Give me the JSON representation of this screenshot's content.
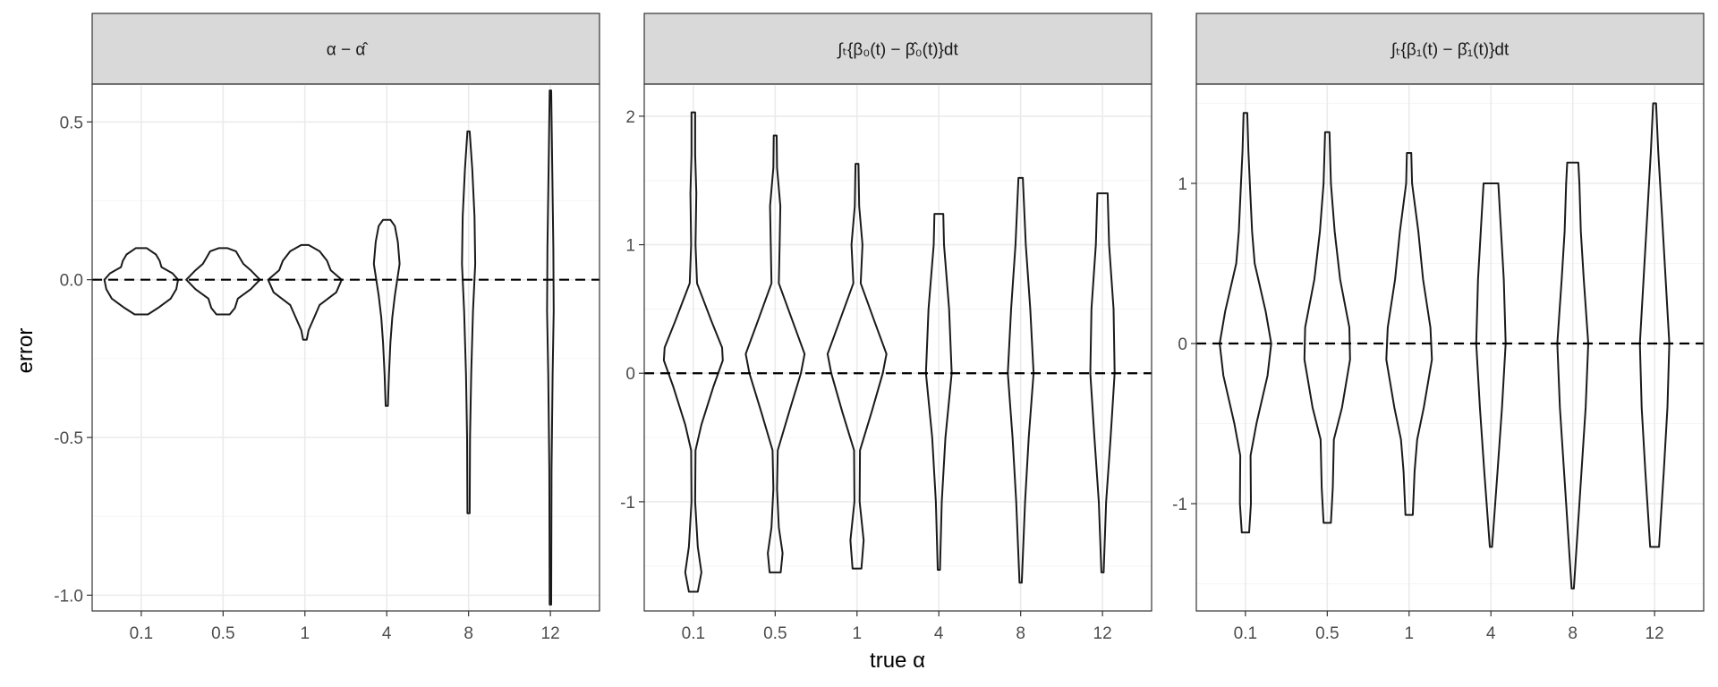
{
  "chart_data": {
    "type": "violin",
    "xlabel": "true α",
    "ylabel": "error",
    "categories": [
      "0.1",
      "0.5",
      "1",
      "4",
      "8",
      "12"
    ],
    "reference_line": {
      "y": 0,
      "style": "dashed"
    },
    "grid": true,
    "facets": [
      {
        "strip": "α − α̂",
        "ylim": [
          -1.05,
          0.62
        ],
        "yticks": [
          -1.0,
          -0.5,
          0.0,
          0.5
        ],
        "ytick_labels": [
          "-1.0",
          "-0.5",
          "0.0",
          "0.5"
        ],
        "violins": [
          {
            "category": "0.1",
            "min": -0.11,
            "max": 0.1,
            "profile": [
              [
                -0.11,
                0.18
              ],
              [
                -0.09,
                0.45
              ],
              [
                -0.06,
                0.8
              ],
              [
                -0.03,
                0.95
              ],
              [
                0.0,
                1.0
              ],
              [
                0.02,
                0.85
              ],
              [
                0.04,
                0.55
              ],
              [
                0.06,
                0.5
              ],
              [
                0.08,
                0.4
              ],
              [
                0.1,
                0.15
              ]
            ]
          },
          {
            "category": "0.5",
            "min": -0.11,
            "max": 0.1,
            "profile": [
              [
                -0.11,
                0.18
              ],
              [
                -0.09,
                0.32
              ],
              [
                -0.06,
                0.4
              ],
              [
                -0.03,
                0.75
              ],
              [
                0.0,
                1.0
              ],
              [
                0.03,
                0.75
              ],
              [
                0.05,
                0.55
              ],
              [
                0.07,
                0.45
              ],
              [
                0.09,
                0.35
              ],
              [
                0.1,
                0.12
              ]
            ]
          },
          {
            "category": "1",
            "min": -0.19,
            "max": 0.11,
            "profile": [
              [
                -0.19,
                0.05
              ],
              [
                -0.16,
                0.1
              ],
              [
                -0.12,
                0.25
              ],
              [
                -0.08,
                0.4
              ],
              [
                -0.04,
                0.85
              ],
              [
                0.0,
                1.0
              ],
              [
                0.03,
                0.7
              ],
              [
                0.06,
                0.6
              ],
              [
                0.09,
                0.4
              ],
              [
                0.11,
                0.1
              ]
            ]
          },
          {
            "category": "4",
            "min": -0.4,
            "max": 0.19,
            "profile": [
              [
                -0.4,
                0.03
              ],
              [
                -0.3,
                0.06
              ],
              [
                -0.2,
                0.1
              ],
              [
                -0.12,
                0.15
              ],
              [
                -0.05,
                0.22
              ],
              [
                0.05,
                0.35
              ],
              [
                0.12,
                0.3
              ],
              [
                0.17,
                0.22
              ],
              [
                0.19,
                0.1
              ]
            ]
          },
          {
            "category": "8",
            "min": -0.74,
            "max": 0.47,
            "profile": [
              [
                -0.74,
                0.03
              ],
              [
                -0.5,
                0.04
              ],
              [
                -0.3,
                0.07
              ],
              [
                -0.1,
                0.12
              ],
              [
                0.05,
                0.18
              ],
              [
                0.2,
                0.16
              ],
              [
                0.35,
                0.1
              ],
              [
                0.47,
                0.03
              ]
            ]
          },
          {
            "category": "12",
            "min": -1.03,
            "max": 0.6,
            "profile": [
              [
                -1.03,
                0.02
              ],
              [
                -0.6,
                0.03
              ],
              [
                -0.3,
                0.06
              ],
              [
                -0.1,
                0.09
              ],
              [
                0.1,
                0.08
              ],
              [
                0.35,
                0.05
              ],
              [
                0.6,
                0.02
              ]
            ]
          }
        ]
      },
      {
        "strip": "∫ₜ{β₀(t) − β̂₀(t)}dt",
        "ylim": [
          -1.85,
          2.25
        ],
        "yticks": [
          -1,
          0,
          1,
          2
        ],
        "ytick_labels": [
          "-1",
          "0",
          "1",
          "2"
        ],
        "violins": [
          {
            "category": "0.1",
            "min": -1.7,
            "max": 2.03,
            "profile": [
              [
                -1.7,
                0.12
              ],
              [
                -1.55,
                0.22
              ],
              [
                -1.35,
                0.12
              ],
              [
                -1.0,
                0.05
              ],
              [
                -0.6,
                0.06
              ],
              [
                -0.4,
                0.22
              ],
              [
                -0.1,
                0.55
              ],
              [
                0.1,
                0.8
              ],
              [
                0.2,
                0.78
              ],
              [
                0.4,
                0.5
              ],
              [
                0.7,
                0.1
              ],
              [
                1.0,
                0.06
              ],
              [
                1.4,
                0.08
              ],
              [
                1.7,
                0.05
              ],
              [
                2.03,
                0.05
              ]
            ]
          },
          {
            "category": "0.5",
            "min": -1.55,
            "max": 1.85,
            "profile": [
              [
                -1.55,
                0.15
              ],
              [
                -1.4,
                0.2
              ],
              [
                -1.2,
                0.1
              ],
              [
                -0.9,
                0.05
              ],
              [
                -0.6,
                0.07
              ],
              [
                -0.3,
                0.38
              ],
              [
                0.0,
                0.7
              ],
              [
                0.15,
                0.8
              ],
              [
                0.4,
                0.48
              ],
              [
                0.7,
                0.1
              ],
              [
                1.0,
                0.12
              ],
              [
                1.3,
                0.14
              ],
              [
                1.6,
                0.05
              ],
              [
                1.85,
                0.04
              ]
            ]
          },
          {
            "category": "1",
            "min": -1.52,
            "max": 1.63,
            "profile": [
              [
                -1.52,
                0.12
              ],
              [
                -1.3,
                0.18
              ],
              [
                -1.0,
                0.07
              ],
              [
                -0.6,
                0.08
              ],
              [
                -0.3,
                0.4
              ],
              [
                0.0,
                0.7
              ],
              [
                0.15,
                0.8
              ],
              [
                0.4,
                0.48
              ],
              [
                0.7,
                0.1
              ],
              [
                1.0,
                0.15
              ],
              [
                1.3,
                0.06
              ],
              [
                1.63,
                0.04
              ]
            ]
          },
          {
            "category": "4",
            "min": -1.53,
            "max": 1.24,
            "profile": [
              [
                -1.53,
                0.03
              ],
              [
                -1.0,
                0.08
              ],
              [
                -0.5,
                0.18
              ],
              [
                0.0,
                0.35
              ],
              [
                0.5,
                0.28
              ],
              [
                1.0,
                0.14
              ],
              [
                1.24,
                0.12
              ]
            ]
          },
          {
            "category": "8",
            "min": -1.63,
            "max": 1.52,
            "profile": [
              [
                -1.63,
                0.03
              ],
              [
                -1.0,
                0.12
              ],
              [
                -0.5,
                0.22
              ],
              [
                0.0,
                0.35
              ],
              [
                0.5,
                0.26
              ],
              [
                1.0,
                0.14
              ],
              [
                1.52,
                0.06
              ]
            ]
          },
          {
            "category": "12",
            "min": -1.55,
            "max": 1.4,
            "profile": [
              [
                -1.55,
                0.03
              ],
              [
                -1.0,
                0.1
              ],
              [
                -0.5,
                0.22
              ],
              [
                0.0,
                0.33
              ],
              [
                0.5,
                0.3
              ],
              [
                1.0,
                0.18
              ],
              [
                1.4,
                0.14
              ]
            ]
          }
        ]
      },
      {
        "strip": "∫ₜ{β₁(t) − β̂₁(t)}dt",
        "ylim": [
          -1.67,
          1.62
        ],
        "yticks": [
          -1,
          0,
          1
        ],
        "ytick_labels": [
          "-1",
          "0",
          "1"
        ],
        "violins": [
          {
            "category": "0.1",
            "min": -1.18,
            "max": 1.44,
            "profile": [
              [
                -1.18,
                0.1
              ],
              [
                -1.0,
                0.15
              ],
              [
                -0.7,
                0.14
              ],
              [
                -0.5,
                0.3
              ],
              [
                -0.2,
                0.6
              ],
              [
                0.0,
                0.7
              ],
              [
                0.2,
                0.55
              ],
              [
                0.5,
                0.25
              ],
              [
                0.7,
                0.18
              ],
              [
                1.0,
                0.12
              ],
              [
                1.2,
                0.08
              ],
              [
                1.44,
                0.05
              ]
            ]
          },
          {
            "category": "0.5",
            "min": -1.12,
            "max": 1.32,
            "profile": [
              [
                -1.12,
                0.1
              ],
              [
                -0.9,
                0.15
              ],
              [
                -0.6,
                0.18
              ],
              [
                -0.4,
                0.4
              ],
              [
                -0.1,
                0.62
              ],
              [
                0.1,
                0.6
              ],
              [
                0.4,
                0.35
              ],
              [
                0.7,
                0.2
              ],
              [
                1.0,
                0.1
              ],
              [
                1.32,
                0.06
              ]
            ]
          },
          {
            "category": "1",
            "min": -1.07,
            "max": 1.19,
            "profile": [
              [
                -1.07,
                0.1
              ],
              [
                -0.8,
                0.15
              ],
              [
                -0.6,
                0.22
              ],
              [
                -0.4,
                0.4
              ],
              [
                -0.1,
                0.62
              ],
              [
                0.1,
                0.58
              ],
              [
                0.4,
                0.38
              ],
              [
                0.7,
                0.25
              ],
              [
                1.0,
                0.08
              ],
              [
                1.19,
                0.06
              ]
            ]
          },
          {
            "category": "4",
            "min": -1.27,
            "max": 1.0,
            "profile": [
              [
                -1.27,
                0.03
              ],
              [
                -0.8,
                0.18
              ],
              [
                -0.4,
                0.3
              ],
              [
                0.0,
                0.4
              ],
              [
                0.4,
                0.35
              ],
              [
                0.8,
                0.25
              ],
              [
                1.0,
                0.2
              ]
            ]
          },
          {
            "category": "8",
            "min": -1.53,
            "max": 1.13,
            "profile": [
              [
                -1.53,
                0.03
              ],
              [
                -1.0,
                0.18
              ],
              [
                -0.4,
                0.35
              ],
              [
                0.0,
                0.42
              ],
              [
                0.4,
                0.3
              ],
              [
                0.7,
                0.22
              ],
              [
                1.0,
                0.18
              ],
              [
                1.13,
                0.15
              ]
            ]
          },
          {
            "category": "12",
            "min": -1.27,
            "max": 1.5,
            "profile": [
              [
                -1.27,
                0.12
              ],
              [
                -0.8,
                0.25
              ],
              [
                -0.4,
                0.35
              ],
              [
                0.0,
                0.4
              ],
              [
                0.4,
                0.3
              ],
              [
                0.8,
                0.2
              ],
              [
                1.2,
                0.1
              ],
              [
                1.5,
                0.04
              ]
            ]
          }
        ]
      }
    ]
  },
  "colors": {
    "strip_fill": "#d9d9d9",
    "panel_border": "#333333",
    "grid_major": "#ebebeb",
    "grid_minor": "#f5f5f5",
    "violin_stroke": "#1a1a1a",
    "reference_line": "#000000"
  }
}
